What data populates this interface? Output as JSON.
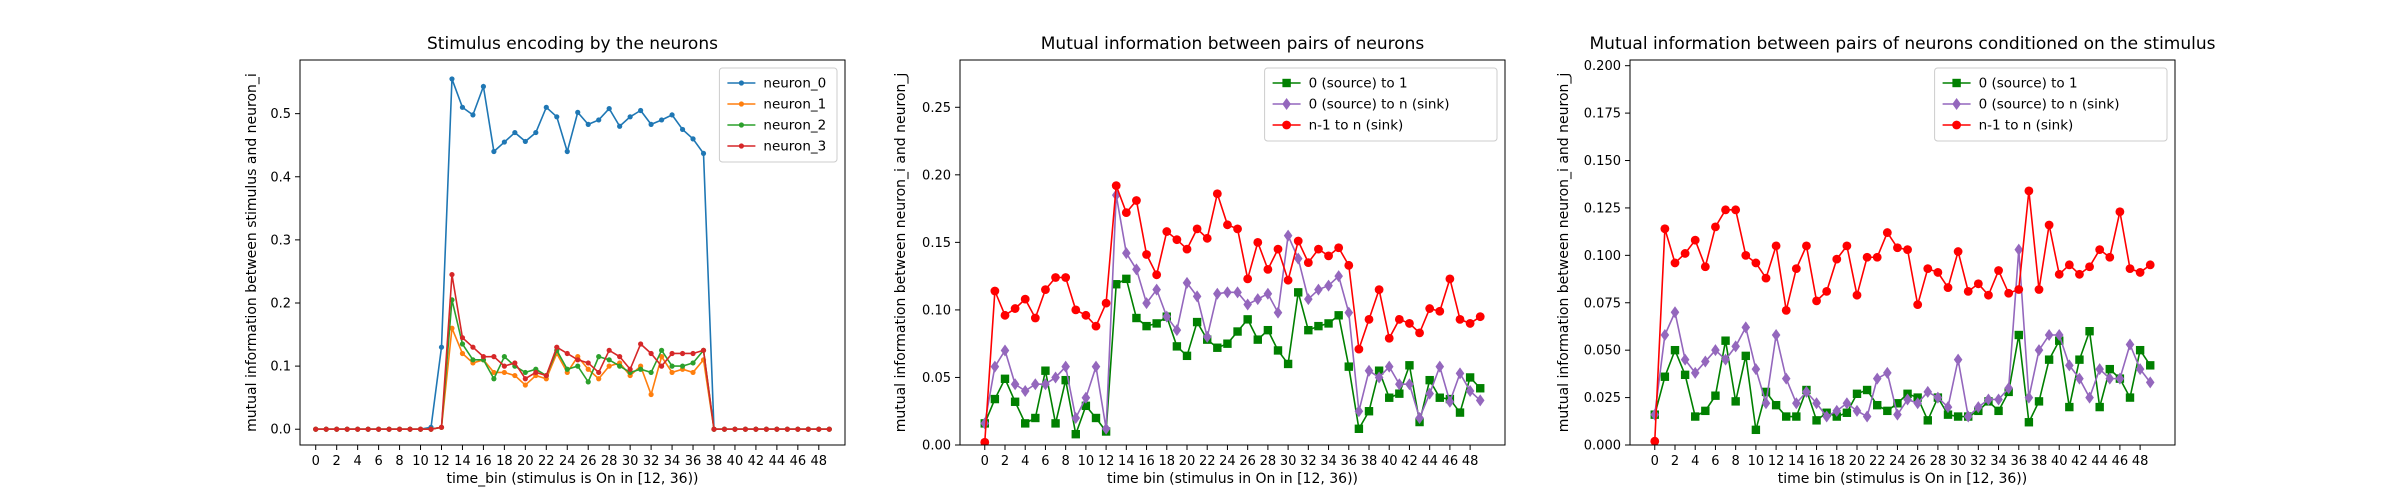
{
  "chart_data": [
    {
      "type": "line",
      "title": "Stimulus encoding by the neurons",
      "xlabel": "time_bin (stimulus is On in [12, 36))",
      "ylabel": "mutual information between stimulus and neuron_i",
      "xlim": [
        -1.5,
        50.5
      ],
      "ylim": [
        -0.025,
        0.585
      ],
      "xticks": [
        0,
        2,
        4,
        6,
        8,
        10,
        12,
        14,
        16,
        18,
        20,
        22,
        24,
        26,
        28,
        30,
        32,
        34,
        36,
        38,
        40,
        42,
        44,
        46,
        48
      ],
      "yticks": [
        0.0,
        0.1,
        0.2,
        0.3,
        0.4,
        0.5
      ],
      "ytick_decimals": 1,
      "legend_position": "top-right",
      "x": [
        0,
        1,
        2,
        3,
        4,
        5,
        6,
        7,
        8,
        9,
        10,
        11,
        12,
        13,
        14,
        15,
        16,
        17,
        18,
        19,
        20,
        21,
        22,
        23,
        24,
        25,
        26,
        27,
        28,
        29,
        30,
        31,
        32,
        33,
        34,
        35,
        36,
        37,
        38,
        39,
        40,
        41,
        42,
        43,
        44,
        45,
        46,
        47,
        48,
        49
      ],
      "series": [
        {
          "name": "neuron_0",
          "color": "#1f77b4",
          "marker": "dot",
          "values": [
            0,
            0,
            0,
            0,
            0,
            0,
            0,
            0,
            0,
            0,
            0,
            0.003,
            0.13,
            0.555,
            0.51,
            0.498,
            0.543,
            0.44,
            0.455,
            0.47,
            0.456,
            0.47,
            0.51,
            0.495,
            0.44,
            0.502,
            0.483,
            0.49,
            0.508,
            0.48,
            0.495,
            0.505,
            0.483,
            0.49,
            0.498,
            0.475,
            0.46,
            0.437,
            0,
            0,
            0,
            0,
            0,
            0,
            0,
            0,
            0,
            0,
            0,
            0
          ]
        },
        {
          "name": "neuron_1",
          "color": "#ff7f0e",
          "marker": "dot",
          "values": [
            0,
            0,
            0,
            0,
            0,
            0,
            0,
            0,
            0,
            0,
            0,
            0,
            0.003,
            0.16,
            0.12,
            0.105,
            0.11,
            0.09,
            0.09,
            0.085,
            0.07,
            0.085,
            0.08,
            0.12,
            0.09,
            0.115,
            0.095,
            0.08,
            0.1,
            0.105,
            0.085,
            0.1,
            0.055,
            0.115,
            0.09,
            0.095,
            0.09,
            0.11,
            0,
            0,
            0,
            0,
            0,
            0,
            0,
            0,
            0,
            0,
            0,
            0
          ]
        },
        {
          "name": "neuron_2",
          "color": "#2ca02c",
          "marker": "dot",
          "values": [
            0,
            0,
            0,
            0,
            0,
            0,
            0,
            0,
            0,
            0,
            0,
            0,
            0.003,
            0.205,
            0.135,
            0.11,
            0.11,
            0.08,
            0.115,
            0.1,
            0.09,
            0.095,
            0.085,
            0.125,
            0.095,
            0.1,
            0.075,
            0.115,
            0.11,
            0.1,
            0.09,
            0.095,
            0.09,
            0.125,
            0.1,
            0.1,
            0.105,
            0.125,
            0,
            0,
            0,
            0,
            0,
            0,
            0,
            0,
            0,
            0,
            0,
            0
          ]
        },
        {
          "name": "neuron_3",
          "color": "#d62728",
          "marker": "dot",
          "values": [
            0,
            0,
            0,
            0,
            0,
            0,
            0,
            0,
            0,
            0,
            0,
            0,
            0.003,
            0.245,
            0.145,
            0.13,
            0.115,
            0.115,
            0.1,
            0.105,
            0.08,
            0.09,
            0.085,
            0.13,
            0.12,
            0.11,
            0.105,
            0.09,
            0.125,
            0.115,
            0.095,
            0.135,
            0.12,
            0.1,
            0.12,
            0.12,
            0.12,
            0.125,
            0,
            0,
            0,
            0,
            0,
            0,
            0,
            0,
            0,
            0,
            0,
            0
          ]
        }
      ]
    },
    {
      "type": "line",
      "title": "Mutual information between pairs of neurons",
      "xlabel": "time bin (stimulus in On in [12, 36))",
      "ylabel": "mutual information between neuron_i and neuron_j",
      "xlim": [
        -2.45,
        51.45
      ],
      "ylim": [
        0,
        0.285
      ],
      "xticks": [
        0,
        2,
        4,
        6,
        8,
        10,
        12,
        14,
        16,
        18,
        20,
        22,
        24,
        26,
        28,
        30,
        32,
        34,
        36,
        38,
        40,
        42,
        44,
        46,
        48
      ],
      "yticks": [
        0.0,
        0.05,
        0.1,
        0.15,
        0.2,
        0.25
      ],
      "ytick_decimals": 2,
      "legend_position": "top-right",
      "x": [
        0,
        1,
        2,
        3,
        4,
        5,
        6,
        7,
        8,
        9,
        10,
        11,
        12,
        13,
        14,
        15,
        16,
        17,
        18,
        19,
        20,
        21,
        22,
        23,
        24,
        25,
        26,
        27,
        28,
        29,
        30,
        31,
        32,
        33,
        34,
        35,
        36,
        37,
        38,
        39,
        40,
        41,
        42,
        43,
        44,
        45,
        46,
        47,
        48,
        49
      ],
      "series": [
        {
          "name": "0 (source) to 1",
          "color": "#008000",
          "marker": "square",
          "values": [
            0.016,
            0.034,
            0.049,
            0.032,
            0.016,
            0.02,
            0.055,
            0.016,
            0.048,
            0.008,
            0.029,
            0.02,
            0.01,
            0.119,
            0.123,
            0.094,
            0.088,
            0.09,
            0.095,
            0.073,
            0.066,
            0.091,
            0.078,
            0.072,
            0.075,
            0.084,
            0.093,
            0.078,
            0.085,
            0.07,
            0.06,
            0.113,
            0.085,
            0.088,
            0.09,
            0.096,
            0.058,
            0.012,
            0.025,
            0.055,
            0.035,
            0.038,
            0.059,
            0.017,
            0.048,
            0.035,
            0.034,
            0.024,
            0.05,
            0.042
          ]
        },
        {
          "name": "0 (source) to n (sink)",
          "color": "#9467bd",
          "marker": "diamond",
          "values": [
            0.016,
            0.058,
            0.07,
            0.045,
            0.04,
            0.045,
            0.045,
            0.05,
            0.058,
            0.02,
            0.035,
            0.058,
            0.012,
            0.185,
            0.142,
            0.13,
            0.105,
            0.115,
            0.095,
            0.085,
            0.12,
            0.11,
            0.08,
            0.112,
            0.113,
            0.113,
            0.104,
            0.108,
            0.112,
            0.098,
            0.155,
            0.138,
            0.108,
            0.115,
            0.118,
            0.125,
            0.098,
            0.025,
            0.055,
            0.05,
            0.058,
            0.045,
            0.045,
            0.02,
            0.038,
            0.058,
            0.032,
            0.053,
            0.04,
            0.033
          ]
        },
        {
          "name": "n-1 to n (sink)",
          "color": "#ff0000",
          "marker": "circle",
          "values": [
            0.002,
            0.114,
            0.096,
            0.101,
            0.108,
            0.094,
            0.115,
            0.124,
            0.124,
            0.1,
            0.096,
            0.088,
            0.105,
            0.192,
            0.172,
            0.181,
            0.141,
            0.126,
            0.158,
            0.152,
            0.145,
            0.16,
            0.153,
            0.186,
            0.163,
            0.16,
            0.123,
            0.15,
            0.13,
            0.145,
            0.122,
            0.151,
            0.135,
            0.145,
            0.14,
            0.146,
            0.133,
            0.071,
            0.093,
            0.115,
            0.079,
            0.093,
            0.09,
            0.083,
            0.101,
            0.099,
            0.123,
            0.093,
            0.09,
            0.095
          ]
        }
      ]
    },
    {
      "type": "line",
      "title": "Mutual information between pairs of neurons conditioned on the stimulus",
      "xlabel": "time bin (stimulus is On in [12, 36))",
      "ylabel": "mutual information between neuron_i and neuron_j",
      "xlim": [
        -2.45,
        51.45
      ],
      "ylim": [
        0,
        0.203
      ],
      "xticks": [
        0,
        2,
        4,
        6,
        8,
        10,
        12,
        14,
        16,
        18,
        20,
        22,
        24,
        26,
        28,
        30,
        32,
        34,
        36,
        38,
        40,
        42,
        44,
        46,
        48
      ],
      "yticks": [
        0.0,
        0.025,
        0.05,
        0.075,
        0.1,
        0.125,
        0.15,
        0.175,
        0.2
      ],
      "ytick_decimals": 3,
      "legend_position": "top-right",
      "x": [
        0,
        1,
        2,
        3,
        4,
        5,
        6,
        7,
        8,
        9,
        10,
        11,
        12,
        13,
        14,
        15,
        16,
        17,
        18,
        19,
        20,
        21,
        22,
        23,
        24,
        25,
        26,
        27,
        28,
        29,
        30,
        31,
        32,
        33,
        34,
        35,
        36,
        37,
        38,
        39,
        40,
        41,
        42,
        43,
        44,
        45,
        46,
        47,
        48,
        49
      ],
      "series": [
        {
          "name": "0 (source) to 1",
          "color": "#008000",
          "marker": "square",
          "values": [
            0.016,
            0.036,
            0.05,
            0.037,
            0.015,
            0.018,
            0.026,
            0.055,
            0.023,
            0.047,
            0.008,
            0.028,
            0.021,
            0.015,
            0.015,
            0.029,
            0.013,
            0.017,
            0.015,
            0.017,
            0.027,
            0.029,
            0.021,
            0.018,
            0.022,
            0.027,
            0.025,
            0.013,
            0.025,
            0.016,
            0.015,
            0.015,
            0.018,
            0.023,
            0.018,
            0.028,
            0.058,
            0.012,
            0.023,
            0.045,
            0.055,
            0.02,
            0.045,
            0.06,
            0.02,
            0.04,
            0.035,
            0.025,
            0.05,
            0.042
          ]
        },
        {
          "name": "0 (source) to n (sink)",
          "color": "#9467bd",
          "marker": "diamond",
          "values": [
            0.016,
            0.058,
            0.07,
            0.045,
            0.038,
            0.044,
            0.05,
            0.045,
            0.052,
            0.062,
            0.04,
            0.022,
            0.058,
            0.035,
            0.022,
            0.028,
            0.022,
            0.015,
            0.018,
            0.022,
            0.018,
            0.015,
            0.035,
            0.038,
            0.016,
            0.024,
            0.022,
            0.028,
            0.025,
            0.02,
            0.045,
            0.015,
            0.02,
            0.024,
            0.024,
            0.03,
            0.103,
            0.025,
            0.05,
            0.058,
            0.058,
            0.042,
            0.035,
            0.025,
            0.04,
            0.035,
            0.035,
            0.053,
            0.04,
            0.033
          ]
        },
        {
          "name": "n-1 to n (sink)",
          "color": "#ff0000",
          "marker": "circle",
          "values": [
            0.002,
            0.114,
            0.096,
            0.101,
            0.108,
            0.094,
            0.115,
            0.124,
            0.124,
            0.1,
            0.096,
            0.088,
            0.105,
            0.071,
            0.093,
            0.105,
            0.076,
            0.081,
            0.098,
            0.105,
            0.079,
            0.099,
            0.099,
            0.112,
            0.104,
            0.103,
            0.074,
            0.093,
            0.091,
            0.083,
            0.102,
            0.081,
            0.085,
            0.079,
            0.092,
            0.08,
            0.082,
            0.134,
            0.082,
            0.116,
            0.09,
            0.095,
            0.09,
            0.094,
            0.103,
            0.099,
            0.123,
            0.093,
            0.091,
            0.095
          ]
        }
      ]
    }
  ]
}
